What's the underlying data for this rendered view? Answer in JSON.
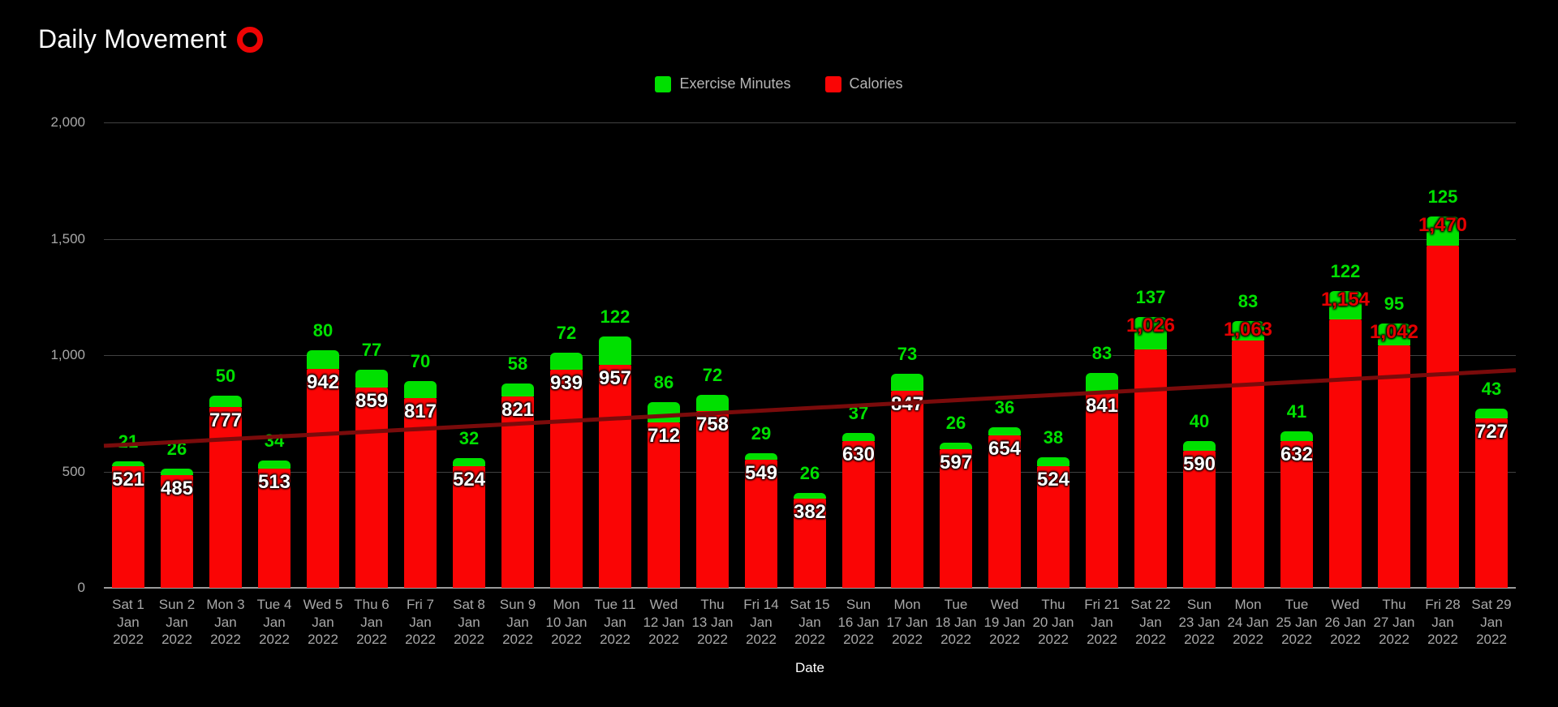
{
  "page": {
    "background": "#000000"
  },
  "header": {
    "title": "Daily Movement",
    "icon": "red-ring-icon",
    "icon_color": "#ee0404"
  },
  "legend": [
    {
      "label": "Exercise Minutes",
      "color": "#00e000"
    },
    {
      "label": "Calories",
      "color": "#fa0505"
    }
  ],
  "axis": {
    "xlabel": "Date"
  },
  "colors": {
    "background": "#000000",
    "bar_red": "#fa0505",
    "bar_green": "#00e000",
    "trend_line": "#7a0b0b",
    "gridline": "#414141",
    "zero_axis": "#9a9a9a",
    "tick_text": "#a8a8a8",
    "legend_text": "#b5b5b5",
    "label_white": "#ffffff",
    "label_red": "#e30000",
    "title_text": "#ffffff"
  },
  "chart_data": {
    "type": "bar",
    "stacked": true,
    "title": "Daily Movement",
    "xlabel": "Date",
    "ylabel": "",
    "ylim": [
      0,
      2000
    ],
    "yticks": [
      0,
      500,
      1000,
      1500,
      2000
    ],
    "ytick_labels": [
      "0",
      "500",
      "1,000",
      "1,500",
      "2,000"
    ],
    "grid": true,
    "legend_position": "top-center",
    "categories": [
      "Sat 1 Jan 2022",
      "Sun 2 Jan 2022",
      "Mon 3 Jan 2022",
      "Tue 4 Jan 2022",
      "Wed 5 Jan 2022",
      "Thu 6 Jan 2022",
      "Fri 7 Jan 2022",
      "Sat 8 Jan 2022",
      "Sun 9 Jan 2022",
      "Mon 10 Jan 2022",
      "Tue 11 Jan 2022",
      "Wed 12 Jan 2022",
      "Thu 13 Jan 2022",
      "Fri 14 Jan 2022",
      "Sat 15 Jan 2022",
      "Sun 16 Jan 2022",
      "Mon 17 Jan 2022",
      "Tue 18 Jan 2022",
      "Wed 19 Jan 2022",
      "Thu 20 Jan 2022",
      "Fri 21 Jan 2022",
      "Sat 22 Jan 2022",
      "Sun 23 Jan 2022",
      "Mon 24 Jan 2022",
      "Tue 25 Jan 2022",
      "Wed 26 Jan 2022",
      "Thu 27 Jan 2022",
      "Fri 28 Jan 2022",
      "Sat 29 Jan 2022"
    ],
    "category_lines": [
      [
        "Sat 1",
        "Jan",
        "2022"
      ],
      [
        "Sun 2",
        "Jan",
        "2022"
      ],
      [
        "Mon 3",
        "Jan",
        "2022"
      ],
      [
        "Tue 4",
        "Jan",
        "2022"
      ],
      [
        "Wed 5",
        "Jan",
        "2022"
      ],
      [
        "Thu 6",
        "Jan",
        "2022"
      ],
      [
        "Fri 7",
        "Jan",
        "2022"
      ],
      [
        "Sat 8",
        "Jan",
        "2022"
      ],
      [
        "Sun 9",
        "Jan",
        "2022"
      ],
      [
        "Mon",
        "10 Jan",
        "2022"
      ],
      [
        "Tue 11",
        "Jan",
        "2022"
      ],
      [
        "Wed",
        "12 Jan",
        "2022"
      ],
      [
        "Thu",
        "13 Jan",
        "2022"
      ],
      [
        "Fri 14",
        "Jan",
        "2022"
      ],
      [
        "Sat 15",
        "Jan",
        "2022"
      ],
      [
        "Sun",
        "16 Jan",
        "2022"
      ],
      [
        "Mon",
        "17 Jan",
        "2022"
      ],
      [
        "Tue",
        "18 Jan",
        "2022"
      ],
      [
        "Wed",
        "19 Jan",
        "2022"
      ],
      [
        "Thu",
        "20 Jan",
        "2022"
      ],
      [
        "Fri 21",
        "Jan",
        "2022"
      ],
      [
        "Sat 22",
        "Jan",
        "2022"
      ],
      [
        "Sun",
        "23 Jan",
        "2022"
      ],
      [
        "Mon",
        "24 Jan",
        "2022"
      ],
      [
        "Tue",
        "25 Jan",
        "2022"
      ],
      [
        "Wed",
        "26 Jan",
        "2022"
      ],
      [
        "Thu",
        "27 Jan",
        "2022"
      ],
      [
        "Fri 28",
        "Jan",
        "2022"
      ],
      [
        "Sat 29",
        "Jan",
        "2022"
      ]
    ],
    "series": [
      {
        "name": "Calories",
        "color": "#fa0505",
        "values": [
          521,
          485,
          777,
          513,
          942,
          859,
          817,
          524,
          821,
          939,
          957,
          712,
          758,
          549,
          382,
          630,
          847,
          597,
          654,
          524,
          841,
          1026,
          590,
          1063,
          632,
          1154,
          1042,
          1470,
          727
        ]
      },
      {
        "name": "Exercise Minutes",
        "color": "#00e000",
        "values": [
          21,
          26,
          50,
          34,
          80,
          77,
          70,
          32,
          58,
          72,
          122,
          86,
          72,
          29,
          26,
          37,
          73,
          26,
          36,
          38,
          83,
          137,
          40,
          83,
          41,
          122,
          95,
          125,
          43
        ]
      }
    ],
    "trend_line": {
      "color": "#7a0b0b",
      "start_value": 610,
      "end_value": 935,
      "width": 5
    }
  }
}
